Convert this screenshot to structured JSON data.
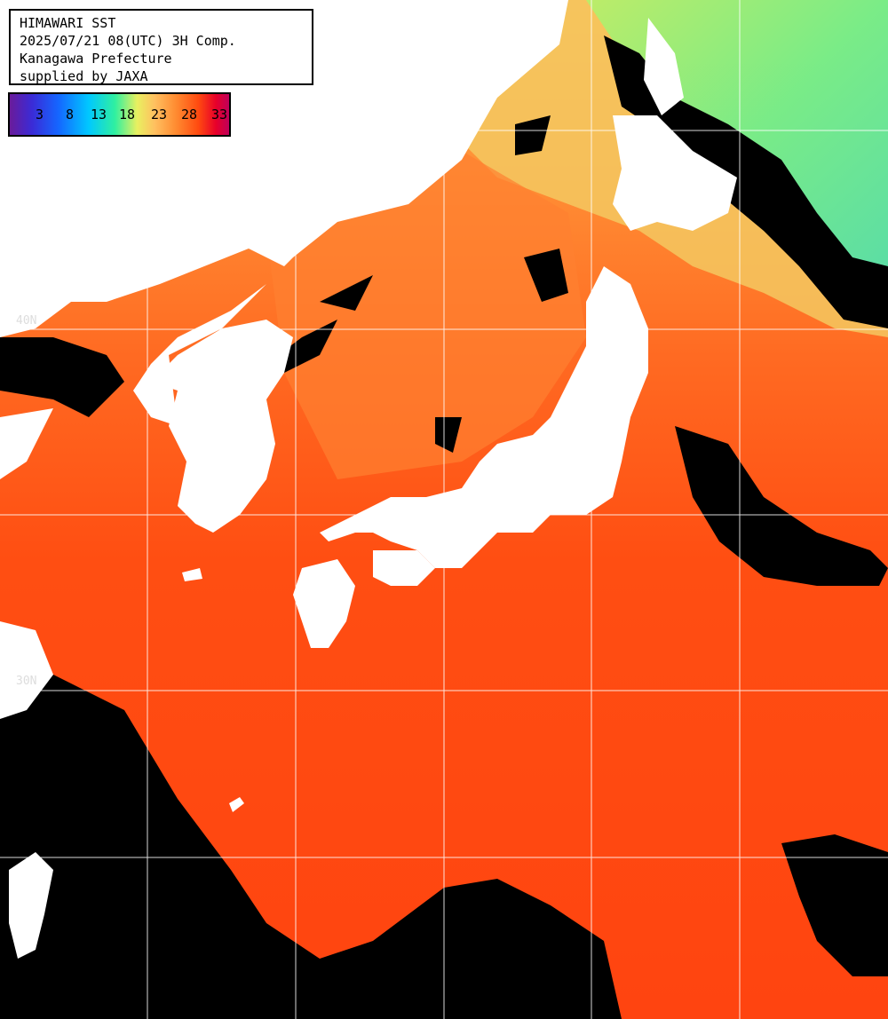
{
  "header": {
    "title": "HIMAWARI SST",
    "datetime": "2025/07/21 08(UTC) 3H Comp.",
    "region": "Kanagawa Prefecture",
    "supplier": "supplied by JAXA"
  },
  "legend": {
    "ticks": [
      "3",
      "8",
      "13",
      "18",
      "23",
      "28",
      "33"
    ]
  },
  "grid": {
    "lat_labels": [
      "40N",
      "30N"
    ]
  },
  "colors": {
    "land": "#ffffff",
    "missing": "#000000",
    "sst_warm": "#ff4a10",
    "sst_mid": "#ff8a30",
    "sst_cool": "#e8f060",
    "sst_cold": "#30f0a0",
    "grid": "#ffffff"
  }
}
